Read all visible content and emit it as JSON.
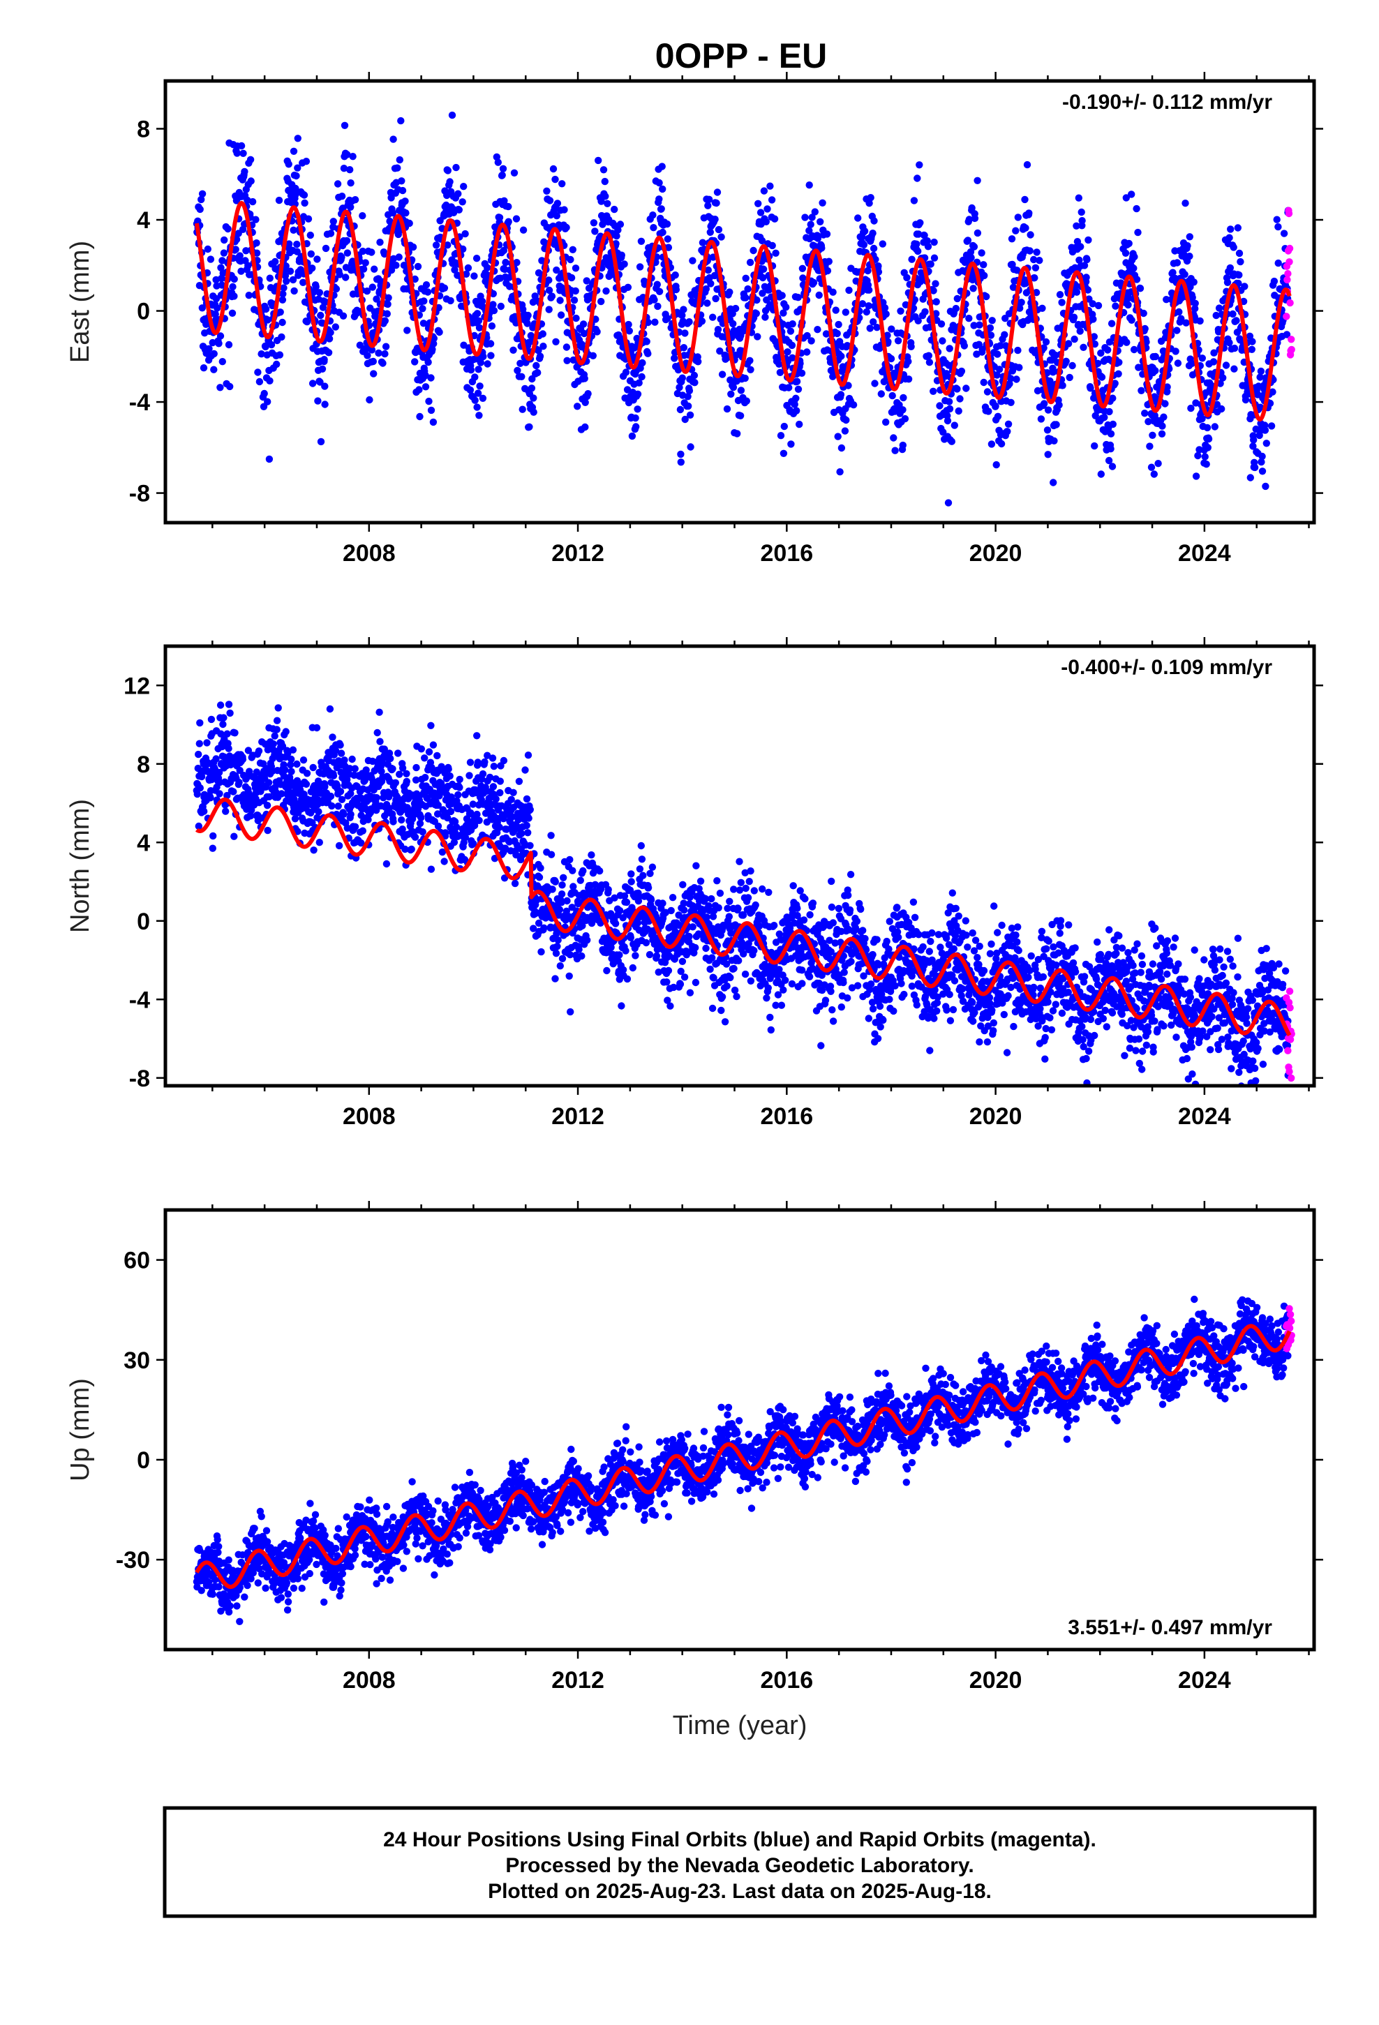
{
  "title": "0OPP - EU",
  "xlabel": "Time (year)",
  "footer": {
    "line1": "24 Hour Positions Using Final Orbits (blue) and Rapid Orbits (magenta).",
    "line2": "Processed by the Nevada Geodetic Laboratory.",
    "line3": "Plotted on 2025-Aug-23. Last data on 2025-Aug-18."
  },
  "colors": {
    "final": "#0000ff",
    "rapid": "#ff00ff",
    "model": "#ff0000",
    "frame": "#000000"
  },
  "chart_data": [
    {
      "type": "scatter",
      "ylabel": "East (mm)",
      "rate": "-0.190+/- 0.112 mm/yr",
      "xlim": [
        2004.1,
        2026.1
      ],
      "ylim": [
        -9.3,
        10.1
      ],
      "xticks": [
        2008,
        2012,
        2016,
        2020,
        2024
      ],
      "yticks": [
        8,
        4,
        0,
        -4,
        -8
      ],
      "model": {
        "t0": 2004.7,
        "t1": 2025.63,
        "offset0": 2.0,
        "rate": -0.19,
        "steps": [
          [
            2011.4,
            0.0
          ]
        ],
        "amp_start": 2.9,
        "amp_end": 2.9,
        "phase": 0.31,
        "scatter": 1.6
      }
    },
    {
      "type": "scatter",
      "ylabel": "North (mm)",
      "rate": "-0.400+/- 0.109 mm/yr",
      "xlim": [
        2004.1,
        2026.1
      ],
      "ylim": [
        -8.4,
        14.0
      ],
      "xticks": [
        2008,
        2012,
        2016,
        2020,
        2024
      ],
      "yticks": [
        12,
        8,
        4,
        0,
        -4,
        -8
      ],
      "model": {
        "t0": 2004.7,
        "t1": 2025.63,
        "offset0": 5.5,
        "rate": -0.4,
        "steps": [
          [
            2011.1,
            -2.3
          ]
        ],
        "amp_start": 0.9,
        "amp_end": 0.9,
        "phase": 0.0,
        "scatter": 1.3
      }
    },
    {
      "type": "scatter",
      "ylabel": "Up (mm)",
      "rate": "3.551+/- 0.497 mm/yr",
      "xlim": [
        2004.1,
        2026.1
      ],
      "ylim": [
        -57,
        75
      ],
      "xticks": [
        2008,
        2012,
        2016,
        2020,
        2024
      ],
      "yticks": [
        60,
        30,
        0,
        -30
      ],
      "model": {
        "t0": 2004.7,
        "t1": 2025.63,
        "offset0": -36,
        "rate": 3.55,
        "steps": [],
        "amp_start": 4.5,
        "amp_end": 4.5,
        "phase": 0.62,
        "scatter": 4.5
      }
    }
  ]
}
